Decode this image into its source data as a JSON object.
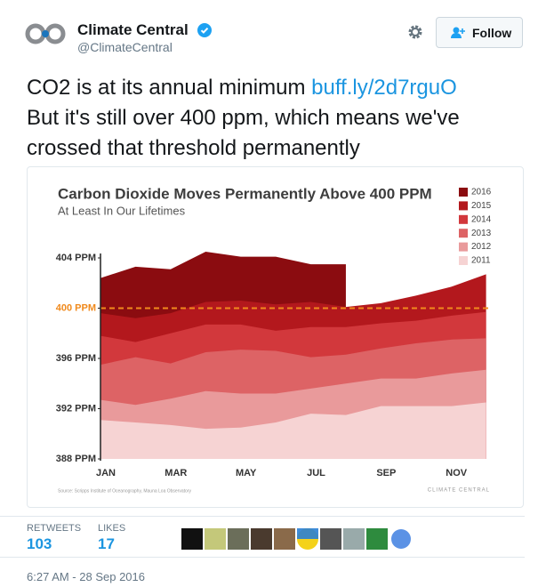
{
  "tweet": {
    "name": "Climate Central",
    "handle": "@ClimateCentral",
    "follow": "Follow",
    "text": "CO2 is at its annual minimum",
    "link": "buff.ly/2d7rguO",
    "text_continued": "But it's still over 400 ppm, which means we've crossed that threshold permanently",
    "retweets_label": "RETWEETS",
    "retweets": "103",
    "likes_label": "LIKES",
    "likes": "17",
    "timestamp": "6:27 AM - 28 Sep 2016"
  },
  "chart_data": {
    "type": "area",
    "title": "Carbon Dioxide Moves Permanently Above 400 PPM",
    "subtitle": "At Least In Our Lifetimes",
    "source": "Source: Scripps Institute of Oceanography, Mauna Loa Observatory",
    "credit": "CLIMATE CENTRAL",
    "categories": [
      "JAN",
      null,
      "MAR",
      null,
      "MAY",
      null,
      "JUL",
      null,
      "SEP",
      null,
      "NOV",
      null
    ],
    "series": [
      {
        "name": "2016",
        "color": "#8b0c10",
        "values": [
          402.4,
          403.3,
          403.1,
          404.5,
          404.1,
          404.1,
          403.5,
          403.5,
          null,
          null,
          null,
          null
        ]
      },
      {
        "name": "2015",
        "color": "#b3181d",
        "values": [
          399.6,
          399.2,
          399.6,
          400.5,
          400.6,
          400.3,
          400.5,
          400.1,
          400.4,
          401.0,
          401.7,
          402.7
        ]
      },
      {
        "name": "2014",
        "color": "#d2383c",
        "values": [
          397.8,
          397.3,
          398.0,
          398.7,
          398.7,
          398.2,
          398.5,
          398.5,
          398.8,
          399.0,
          399.4,
          399.7
        ]
      },
      {
        "name": "2013",
        "color": "#dd6365",
        "values": [
          395.5,
          396.1,
          395.6,
          396.5,
          396.7,
          396.6,
          396.1,
          396.3,
          396.8,
          397.2,
          397.5,
          397.6
        ]
      },
      {
        "name": "2012",
        "color": "#e99a9b",
        "values": [
          392.7,
          392.3,
          392.8,
          393.4,
          393.2,
          393.2,
          393.6,
          394.0,
          394.4,
          394.4,
          394.8,
          395.1
        ]
      },
      {
        "name": "2011",
        "color": "#f6d3d3",
        "values": [
          391.1,
          390.9,
          390.7,
          390.4,
          390.5,
          390.9,
          391.6,
          391.5,
          392.2,
          392.2,
          392.2,
          392.5
        ]
      }
    ],
    "ylim": [
      388,
      404
    ],
    "yticks": [
      {
        "value": 388,
        "label": "388 PPM"
      },
      {
        "value": 392,
        "label": "392 PPM"
      },
      {
        "value": 396,
        "label": "396 PPM"
      },
      {
        "value": 400,
        "label": "400 PPM"
      },
      {
        "value": 404,
        "label": "404 PPM"
      }
    ],
    "threshold": 400,
    "threshold_color": "#f08a1d",
    "legend": "upper right"
  }
}
